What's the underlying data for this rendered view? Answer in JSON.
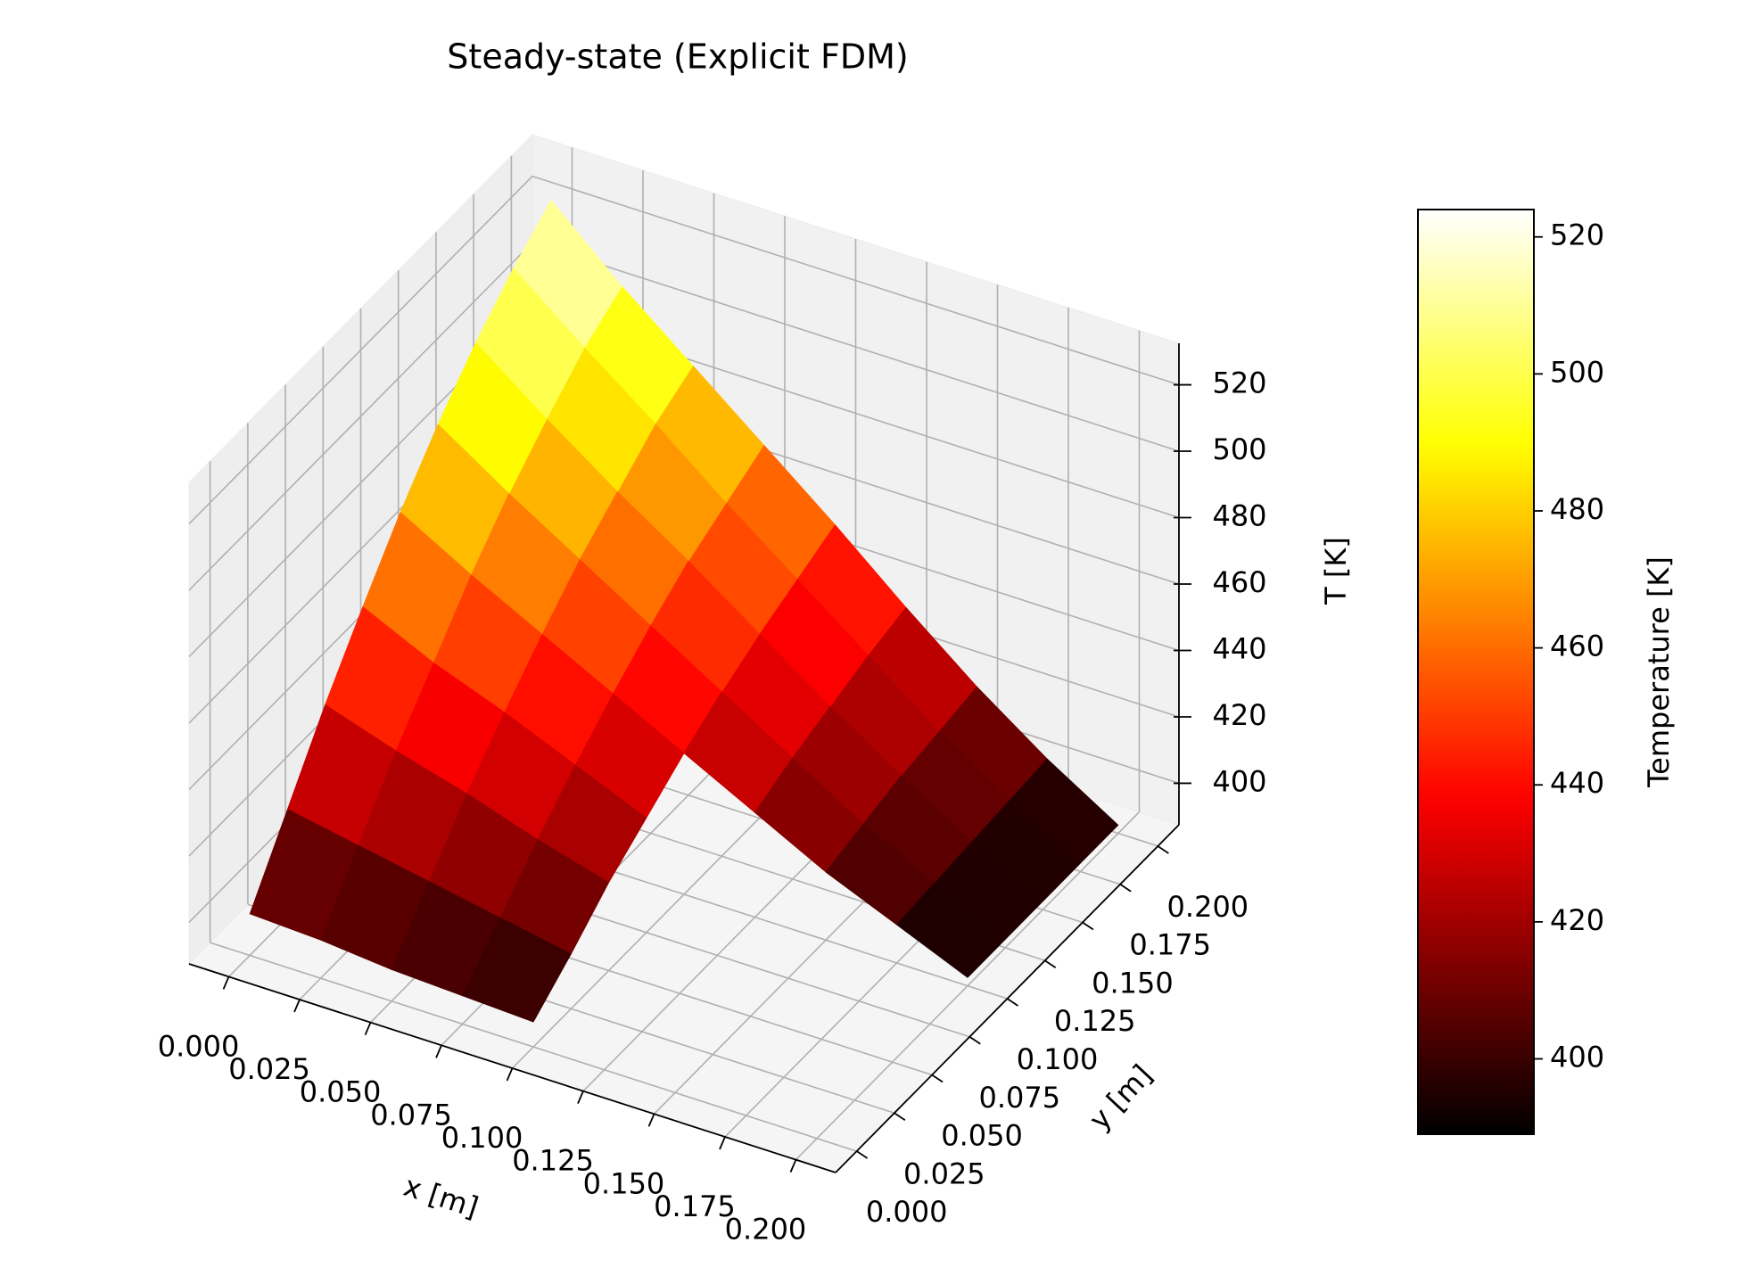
{
  "chart_data": {
    "type": "surface",
    "title": "Steady-state (Explicit FDM)",
    "xlabel": "x [m]",
    "ylabel": "y [m]",
    "zlabel": "T [K]",
    "x": [
      0,
      0.025,
      0.05,
      0.075,
      0.1,
      0.125,
      0.15,
      0.175,
      0.2
    ],
    "y": [
      0,
      0.025,
      0.05,
      0.075,
      0.1,
      0.125,
      0.15,
      0.175,
      0.2
    ],
    "z": [
      [
        400,
        399,
        397,
        396,
        395,
        null,
        null,
        null,
        null
      ],
      [
        420,
        416,
        412,
        408,
        404,
        null,
        null,
        null,
        null
      ],
      [
        440,
        433,
        427,
        420,
        414,
        null,
        null,
        null,
        null
      ],
      [
        458,
        448,
        440,
        431,
        422,
        null,
        null,
        null,
        null
      ],
      [
        475,
        463,
        452,
        441,
        430,
        419,
        408,
        399,
        390
      ],
      [
        490,
        476,
        463,
        450,
        437,
        424,
        411,
        400,
        390
      ],
      [
        503,
        487,
        472,
        458,
        443,
        428,
        414,
        401,
        390
      ],
      [
        514,
        497,
        481,
        464,
        448,
        432,
        416,
        402,
        390
      ],
      [
        523,
        504,
        487,
        470,
        453,
        435,
        418,
        403,
        390
      ]
    ],
    "xlim": [
      -0.014,
      0.214
    ],
    "ylim": [
      -0.014,
      0.214
    ],
    "zlim": [
      387.5,
      532.5
    ],
    "xticks": [
      {
        "value": 0,
        "label": "0.000"
      },
      {
        "value": 0.025,
        "label": "0.025"
      },
      {
        "value": 0.05,
        "label": "0.050"
      },
      {
        "value": 0.075,
        "label": "0.075"
      },
      {
        "value": 0.1,
        "label": "0.100"
      },
      {
        "value": 0.125,
        "label": "0.125"
      },
      {
        "value": 0.15,
        "label": "0.150"
      },
      {
        "value": 0.175,
        "label": "0.175"
      },
      {
        "value": 0.2,
        "label": "0.200"
      }
    ],
    "yticks": [
      {
        "value": 0,
        "label": "0.000"
      },
      {
        "value": 0.025,
        "label": "0.025"
      },
      {
        "value": 0.05,
        "label": "0.050"
      },
      {
        "value": 0.075,
        "label": "0.075"
      },
      {
        "value": 0.1,
        "label": "0.100"
      },
      {
        "value": 0.125,
        "label": "0.125"
      },
      {
        "value": 0.15,
        "label": "0.150"
      },
      {
        "value": 0.175,
        "label": "0.175"
      },
      {
        "value": 0.2,
        "label": "0.200"
      }
    ],
    "zticks": [
      400,
      420,
      440,
      460,
      480,
      500,
      520
    ],
    "grid": true,
    "colormap": "hot",
    "colorbar": {
      "label": "Temperature [K]",
      "lim": [
        389,
        524
      ],
      "ticks": [
        400,
        420,
        440,
        460,
        480,
        500,
        520
      ]
    }
  }
}
